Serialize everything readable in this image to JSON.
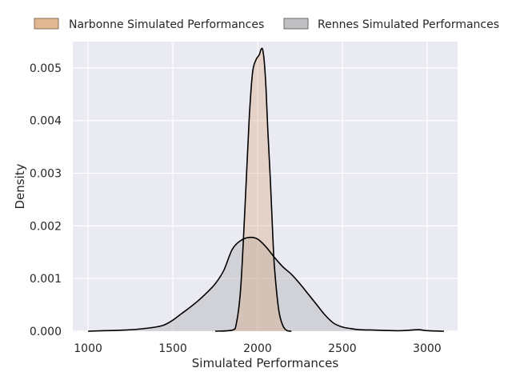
{
  "chart_data": {
    "type": "area",
    "xlabel": "Simulated Performances",
    "ylabel": "Density",
    "xlim": [
      910,
      3180
    ],
    "ylim": [
      0,
      0.0055
    ],
    "x_ticks": [
      1000,
      1500,
      2000,
      2500,
      3000
    ],
    "y_ticks": [
      0.0,
      0.001,
      0.002,
      0.003,
      0.004,
      0.005
    ],
    "y_tick_labels": [
      "0.000",
      "0.001",
      "0.002",
      "0.003",
      "0.004",
      "0.005"
    ],
    "grid": true,
    "legend": "top",
    "series": [
      {
        "name": "Rennes Simulated Performances",
        "color": "#b4b4b9",
        "x": [
          1000,
          1100,
          1200,
          1300,
          1400,
          1450,
          1500,
          1550,
          1600,
          1650,
          1700,
          1750,
          1800,
          1850,
          1900,
          1950,
          2000,
          2050,
          2100,
          2150,
          2200,
          2250,
          2300,
          2350,
          2400,
          2450,
          2500,
          2550,
          2600,
          2700,
          2800,
          2850,
          2900,
          2950,
          3000,
          3100
        ],
        "y": [
          0.0,
          1e-05,
          2e-05,
          4e-05,
          8e-05,
          0.00012,
          0.00021,
          0.00033,
          0.00045,
          0.00058,
          0.00073,
          0.0009,
          0.00115,
          0.00155,
          0.00172,
          0.00178,
          0.00175,
          0.0016,
          0.0014,
          0.00122,
          0.00108,
          0.0009,
          0.0007,
          0.0005,
          0.0003,
          0.00015,
          8e-05,
          5e-05,
          3e-05,
          2e-05,
          1e-05,
          1e-05,
          2e-05,
          3e-05,
          1e-05,
          0.0
        ]
      },
      {
        "name": "Narbonne Simulated Performances",
        "color": "#d9a57a",
        "x": [
          1750,
          1850,
          1875,
          1900,
          1925,
          1950,
          1970,
          1990,
          2010,
          2020,
          2030,
          2040,
          2050,
          2060,
          2075,
          2090,
          2100,
          2125,
          2150,
          2175,
          2200
        ],
        "y": [
          0.0,
          2e-05,
          0.00015,
          0.0008,
          0.0023,
          0.004,
          0.0049,
          0.00515,
          0.00525,
          0.00535,
          0.00535,
          0.0051,
          0.0046,
          0.00385,
          0.0029,
          0.0018,
          0.0012,
          0.0004,
          0.0001,
          1e-05,
          0.0
        ]
      }
    ]
  }
}
